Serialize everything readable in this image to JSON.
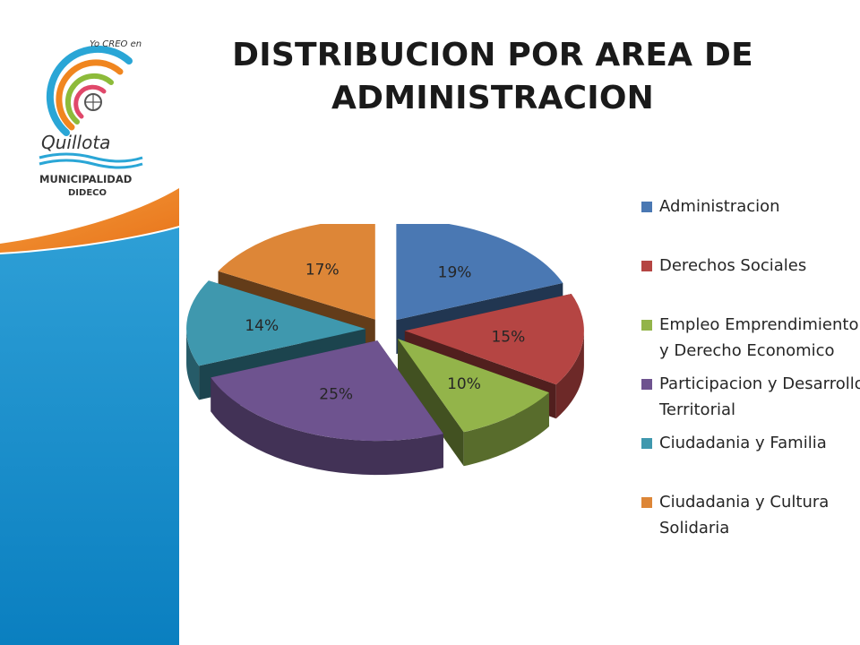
{
  "title": {
    "line1": "DISTRIBUCION POR  AREA DE",
    "line2": "ADMINISTRACION"
  },
  "logo": {
    "tagline": "Yo CREO en",
    "script": "Quillota",
    "municipality": "MUNICIPALIDAD",
    "department": "DIDECO"
  },
  "chart_data": {
    "type": "pie",
    "categories": [
      "Administracion",
      "Derechos Sociales",
      "Empleo Emprendimiento y Derecho Economico",
      "Participacion y Desarrollo Territorial",
      "Ciudadania y Familia",
      "Ciudadania y Cultura Solidaria"
    ],
    "values": [
      19,
      15,
      10,
      25,
      14,
      17
    ],
    "data_labels": [
      "19%",
      "15%",
      "10%",
      "25%",
      "14%",
      "17%"
    ],
    "colors": [
      "#4a78b3",
      "#b54543",
      "#93b44a",
      "#6e538f",
      "#3f98ae",
      "#dd8637"
    ],
    "style": "3d exploded",
    "legend_position": "right"
  },
  "legend_labels": [
    "Administracion",
    "Derechos Sociales",
    "Empleo Emprendimiento\ny Derecho Economico",
    "Participacion y Desarrollo\nTerritorial",
    "Ciudadania y Familia",
    "Ciudadania y Cultura\nSolidaria"
  ]
}
